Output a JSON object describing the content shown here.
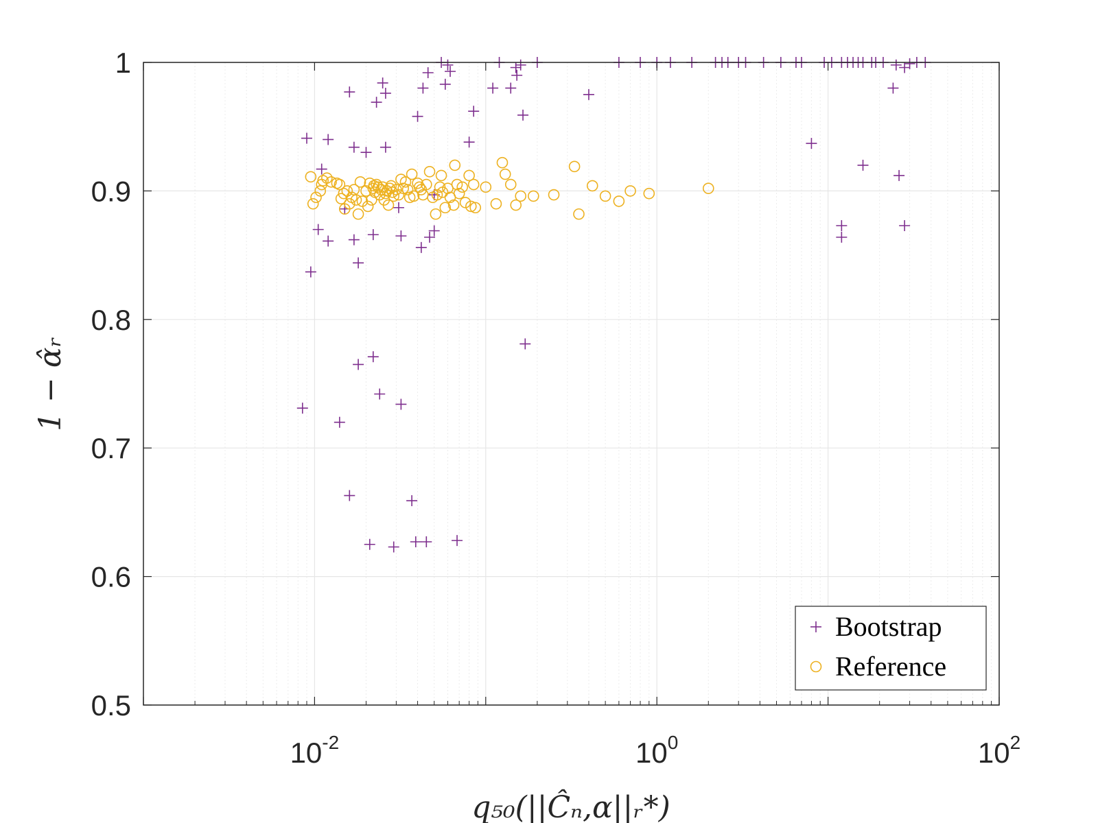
{
  "chart_data": {
    "type": "scatter",
    "x_scale": "log",
    "xlim": [
      0.001,
      100
    ],
    "ylim": [
      0.5,
      1
    ],
    "grid": true,
    "xlabel": "q₅₀(||Ĉₙ,α||ᵣ*)",
    "ylabel": "1 − α̂ᵣ",
    "x_ticks": [
      {
        "value": 0.01,
        "base": "10",
        "exp": "-2"
      },
      {
        "value": 1,
        "base": "10",
        "exp": "0"
      },
      {
        "value": 100,
        "base": "10",
        "exp": "2"
      }
    ],
    "y_ticks": [
      {
        "value": 0.5,
        "label": "0.5"
      },
      {
        "value": 0.6,
        "label": "0.6"
      },
      {
        "value": 0.7,
        "label": "0.7"
      },
      {
        "value": 0.8,
        "label": "0.8"
      },
      {
        "value": 0.9,
        "label": "0.9"
      },
      {
        "value": 1,
        "label": "1"
      }
    ],
    "legend_position": "bottom-right",
    "colors": {
      "Bootstrap": "#7E2F8E",
      "Reference": "#EDB120",
      "grid": "#e6e6e6",
      "axis": "#262626"
    },
    "series": [
      {
        "name": "Bootstrap",
        "marker": "plus",
        "points": [
          [
            0.0085,
            0.731
          ],
          [
            0.009,
            0.941
          ],
          [
            0.0095,
            0.837
          ],
          [
            0.0105,
            0.87
          ],
          [
            0.011,
            0.917
          ],
          [
            0.012,
            0.861
          ],
          [
            0.012,
            0.94
          ],
          [
            0.014,
            0.72
          ],
          [
            0.015,
            0.886
          ],
          [
            0.016,
            0.977
          ],
          [
            0.016,
            0.663
          ],
          [
            0.017,
            0.934
          ],
          [
            0.017,
            0.862
          ],
          [
            0.018,
            0.844
          ],
          [
            0.018,
            0.765
          ],
          [
            0.02,
            0.93
          ],
          [
            0.021,
            0.625
          ],
          [
            0.022,
            0.866
          ],
          [
            0.022,
            0.771
          ],
          [
            0.023,
            0.969
          ],
          [
            0.024,
            0.742
          ],
          [
            0.025,
            0.984
          ],
          [
            0.026,
            0.976
          ],
          [
            0.026,
            0.934
          ],
          [
            0.029,
            0.623
          ],
          [
            0.031,
            0.887
          ],
          [
            0.032,
            0.865
          ],
          [
            0.032,
            0.734
          ],
          [
            0.037,
            0.659
          ],
          [
            0.039,
            0.627
          ],
          [
            0.04,
            0.958
          ],
          [
            0.042,
            0.856
          ],
          [
            0.043,
            0.98
          ],
          [
            0.045,
            0.627
          ],
          [
            0.046,
            0.992
          ],
          [
            0.047,
            0.864
          ],
          [
            0.05,
            0.869
          ],
          [
            0.05,
            0.897
          ],
          [
            0.055,
            1
          ],
          [
            0.058,
            0.983
          ],
          [
            0.06,
            0.998
          ],
          [
            0.062,
            0.993
          ],
          [
            0.068,
            0.628
          ],
          [
            0.08,
            0.938
          ],
          [
            0.085,
            0.962
          ],
          [
            0.11,
            0.98
          ],
          [
            0.12,
            1
          ],
          [
            0.14,
            0.98
          ],
          [
            0.15,
            0.996
          ],
          [
            0.152,
            0.99
          ],
          [
            0.16,
            0.998
          ],
          [
            0.165,
            0.959
          ],
          [
            0.17,
            0.781
          ],
          [
            0.2,
            1
          ],
          [
            0.4,
            0.975
          ],
          [
            0.6,
            1
          ],
          [
            0.8,
            1
          ],
          [
            1.0,
            1
          ],
          [
            1.2,
            1
          ],
          [
            1.6,
            1
          ],
          [
            2.2,
            1
          ],
          [
            2.4,
            1
          ],
          [
            2.6,
            1
          ],
          [
            3.0,
            1
          ],
          [
            3.3,
            1
          ],
          [
            4.2,
            1
          ],
          [
            5.3,
            1
          ],
          [
            6.5,
            1
          ],
          [
            7,
            1
          ],
          [
            9.5,
            1
          ],
          [
            10.5,
            1
          ],
          [
            12,
            1
          ],
          [
            13,
            1
          ],
          [
            14,
            1
          ],
          [
            15,
            1
          ],
          [
            16,
            1
          ],
          [
            18,
            1
          ],
          [
            19,
            1
          ],
          [
            21,
            1
          ],
          [
            25,
            0.998
          ],
          [
            28,
            0.996
          ],
          [
            30,
            0.999
          ],
          [
            33,
            1
          ],
          [
            8,
            0.937
          ],
          [
            26,
            0.912
          ],
          [
            12,
            0.873
          ],
          [
            28,
            0.873
          ],
          [
            12,
            0.864
          ],
          [
            16,
            0.92
          ],
          [
            24,
            0.98
          ],
          [
            37,
            1
          ]
        ]
      },
      {
        "name": "Reference",
        "marker": "circle",
        "points": [
          [
            0.0095,
            0.911
          ],
          [
            0.0098,
            0.89
          ],
          [
            0.0102,
            0.895
          ],
          [
            0.0108,
            0.9
          ],
          [
            0.011,
            0.905
          ],
          [
            0.0112,
            0.908
          ],
          [
            0.0118,
            0.91
          ],
          [
            0.0125,
            0.907
          ],
          [
            0.0135,
            0.906
          ],
          [
            0.014,
            0.905
          ],
          [
            0.0143,
            0.894
          ],
          [
            0.0148,
            0.898
          ],
          [
            0.015,
            0.886
          ],
          [
            0.0155,
            0.9
          ],
          [
            0.016,
            0.89
          ],
          [
            0.0165,
            0.895
          ],
          [
            0.017,
            0.901
          ],
          [
            0.0175,
            0.893
          ],
          [
            0.018,
            0.882
          ],
          [
            0.0185,
            0.907
          ],
          [
            0.019,
            0.892
          ],
          [
            0.02,
            0.9
          ],
          [
            0.0205,
            0.888
          ],
          [
            0.021,
            0.906
          ],
          [
            0.0215,
            0.893
          ],
          [
            0.022,
            0.902
          ],
          [
            0.0222,
            0.904
          ],
          [
            0.0225,
            0.899
          ],
          [
            0.023,
            0.905
          ],
          [
            0.0235,
            0.903
          ],
          [
            0.024,
            0.897
          ],
          [
            0.0245,
            0.901
          ],
          [
            0.025,
            0.903
          ],
          [
            0.0255,
            0.893
          ],
          [
            0.026,
            0.898
          ],
          [
            0.0265,
            0.9
          ],
          [
            0.027,
            0.889
          ],
          [
            0.0275,
            0.902
          ],
          [
            0.028,
            0.904
          ],
          [
            0.0285,
            0.899
          ],
          [
            0.029,
            0.896
          ],
          [
            0.03,
            0.901
          ],
          [
            0.031,
            0.897
          ],
          [
            0.032,
            0.909
          ],
          [
            0.033,
            0.902
          ],
          [
            0.034,
            0.907
          ],
          [
            0.035,
            0.901
          ],
          [
            0.036,
            0.895
          ],
          [
            0.037,
            0.913
          ],
          [
            0.038,
            0.896
          ],
          [
            0.04,
            0.906
          ],
          [
            0.041,
            0.903
          ],
          [
            0.042,
            0.901
          ],
          [
            0.043,
            0.897
          ],
          [
            0.045,
            0.905
          ],
          [
            0.047,
            0.915
          ],
          [
            0.049,
            0.895
          ],
          [
            0.051,
            0.882
          ],
          [
            0.052,
            0.897
          ],
          [
            0.054,
            0.903
          ],
          [
            0.055,
            0.912
          ],
          [
            0.056,
            0.899
          ],
          [
            0.058,
            0.887
          ],
          [
            0.06,
            0.902
          ],
          [
            0.062,
            0.895
          ],
          [
            0.065,
            0.889
          ],
          [
            0.066,
            0.92
          ],
          [
            0.068,
            0.905
          ],
          [
            0.07,
            0.898
          ],
          [
            0.073,
            0.903
          ],
          [
            0.076,
            0.891
          ],
          [
            0.08,
            0.912
          ],
          [
            0.082,
            0.888
          ],
          [
            0.085,
            0.905
          ],
          [
            0.087,
            0.887
          ],
          [
            0.1,
            0.903
          ],
          [
            0.115,
            0.89
          ],
          [
            0.125,
            0.922
          ],
          [
            0.13,
            0.913
          ],
          [
            0.14,
            0.905
          ],
          [
            0.15,
            0.889
          ],
          [
            0.16,
            0.896
          ],
          [
            0.19,
            0.896
          ],
          [
            0.25,
            0.897
          ],
          [
            0.33,
            0.919
          ],
          [
            0.35,
            0.882
          ],
          [
            0.42,
            0.904
          ],
          [
            0.5,
            0.896
          ],
          [
            0.6,
            0.892
          ],
          [
            0.7,
            0.9
          ],
          [
            0.9,
            0.898
          ],
          [
            2.0,
            0.902
          ]
        ]
      }
    ]
  }
}
